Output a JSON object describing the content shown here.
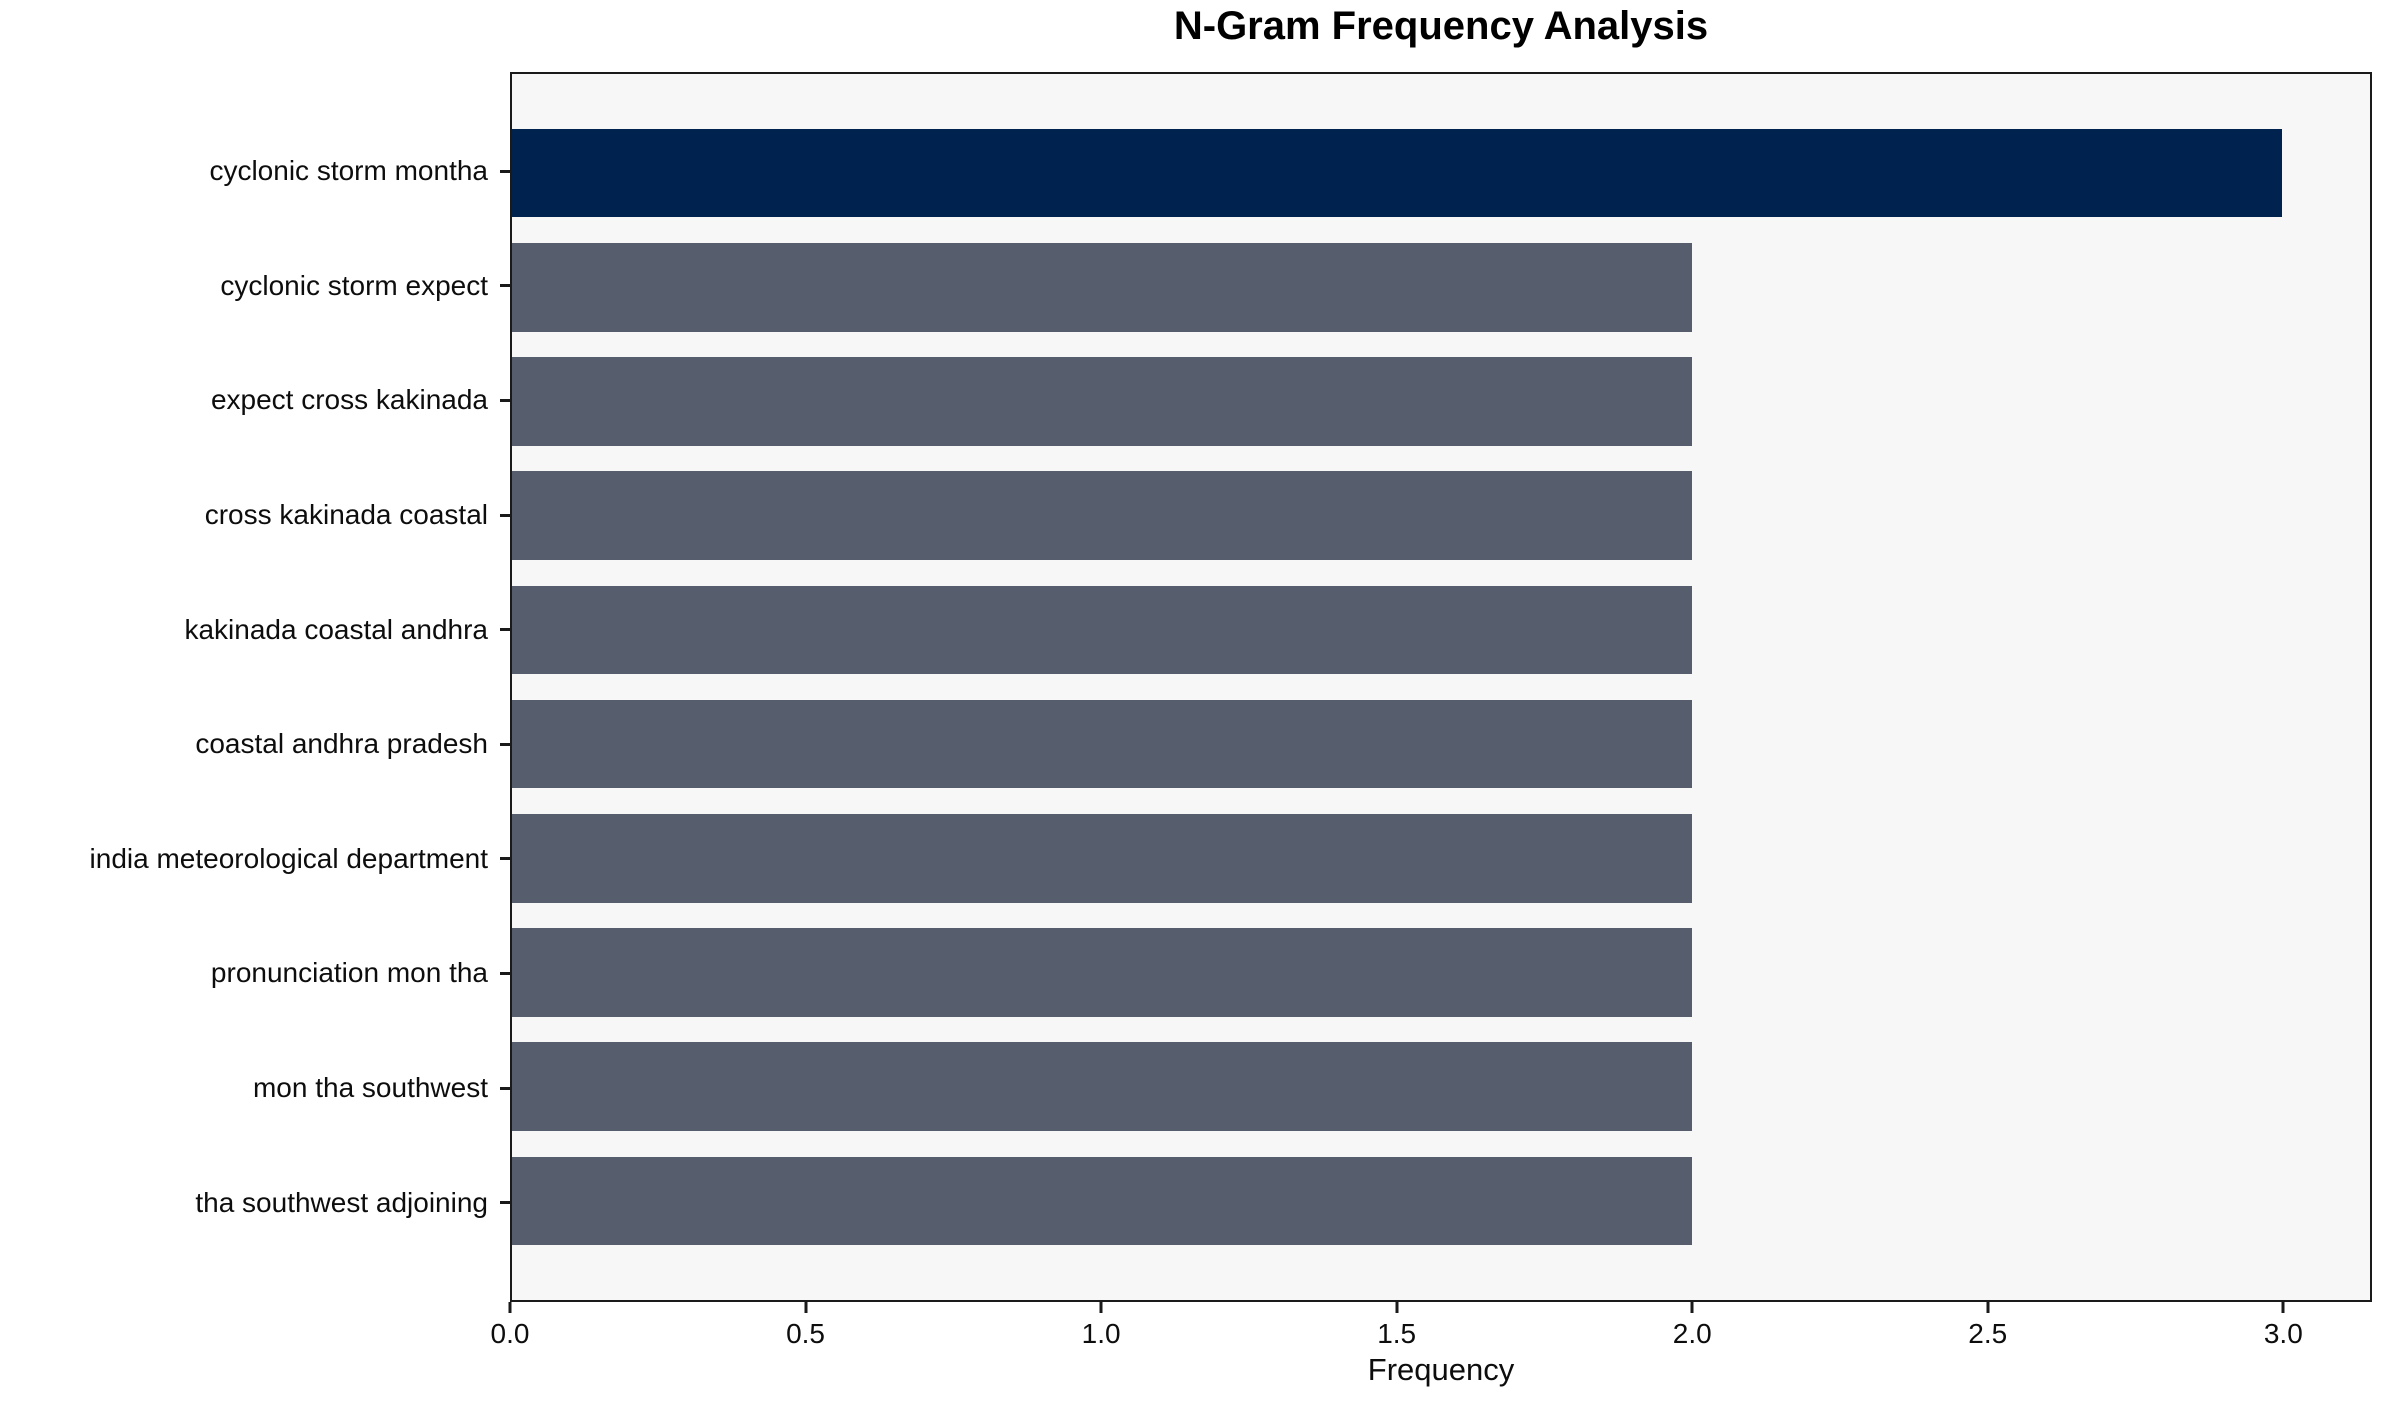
{
  "title": "N-Gram Frequency Analysis",
  "chart_data": {
    "type": "bar",
    "orientation": "horizontal",
    "title": "N-Gram Frequency Analysis",
    "xlabel": "Frequency",
    "ylabel": "",
    "categories": [
      "cyclonic storm montha",
      "cyclonic storm expect",
      "expect cross kakinada",
      "cross kakinada coastal",
      "kakinada coastal andhra",
      "coastal andhra pradesh",
      "india meteorological department",
      "pronunciation mon tha",
      "mon tha southwest",
      "tha southwest adjoining"
    ],
    "values": [
      3,
      2,
      2,
      2,
      2,
      2,
      2,
      2,
      2,
      2
    ],
    "xtick_values": [
      0.0,
      0.5,
      1.0,
      1.5,
      2.0,
      2.5,
      3.0
    ],
    "xtick_labels": [
      "0.0",
      "0.5",
      "1.0",
      "1.5",
      "2.0",
      "2.5",
      "3.0"
    ],
    "xlim": [
      0,
      3.15
    ],
    "grid": false,
    "legend_position": "none",
    "highlight_index": 0,
    "colors": {
      "highlight_bar": "#00224E",
      "default_bar": "#565D6C",
      "plot_background": "#F7F7F8",
      "figure_background": "#FFFFFF",
      "spine": "#1A1A1A",
      "text": "#0D0D0D"
    }
  }
}
